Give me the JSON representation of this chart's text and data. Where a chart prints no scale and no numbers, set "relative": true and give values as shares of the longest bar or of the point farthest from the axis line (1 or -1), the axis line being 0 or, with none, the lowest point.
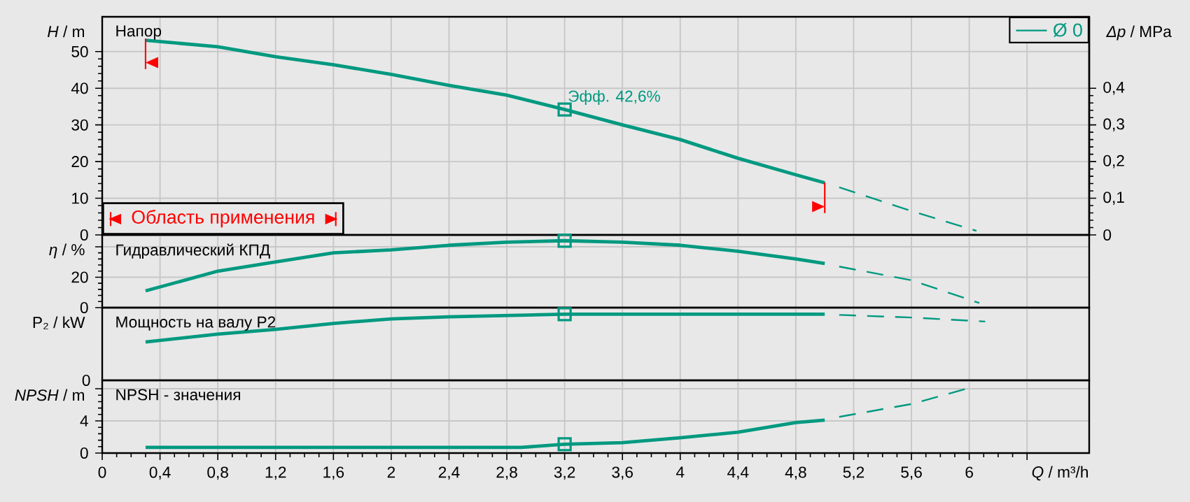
{
  "chart_data": [
    {
      "type": "line",
      "title": "Напор",
      "ylabel": "*H* / m",
      "y2label": "*Δp* / MPa",
      "xlim": [
        0,
        6.83
      ],
      "xticks": [
        0,
        0.4,
        0.8,
        1.2,
        1.6,
        2,
        2.4,
        2.8,
        3.2,
        3.6,
        4,
        4.4,
        4.8,
        5.2,
        5.6,
        6,
        6.4
      ],
      "ylim": [
        0,
        59.5
      ],
      "yticks": [
        0,
        10,
        20,
        30,
        40,
        50
      ],
      "y2lim": [
        0,
        0.595
      ],
      "y2ticks": [
        0,
        {
          "value": 0.1,
          "label": "0,1"
        },
        {
          "value": 0.2,
          "label": "0,2"
        },
        {
          "value": 0.3,
          "label": "0,3"
        },
        {
          "value": 0.4,
          "label": "0,4"
        }
      ],
      "grid": true,
      "legend": "top right",
      "tick_labels": "y",
      "series": [
        {
          "name": "Ø 0",
          "color": "#009980",
          "x": [
            0.3,
            0.8,
            1.2,
            1.6,
            2.0,
            2.4,
            2.8,
            3.2,
            3.6,
            4.0,
            4.4,
            4.8,
            5.0
          ],
          "values": [
            53.1,
            51.3,
            48.6,
            46.4,
            43.8,
            40.8,
            38.1,
            34.2,
            30.0,
            26.0,
            20.9,
            16.4,
            14.2
          ]
        },
        {
          "color": "#009980",
          "line_style": "dashed",
          "x": [
            5.1,
            5.6,
            6.05
          ],
          "values": [
            13.0,
            6.5,
            1.1
          ]
        },
        {
          "type": "scatter",
          "color": "#009980",
          "marker": "square",
          "x": [
            3.2
          ],
          "values": [
            34.2
          ]
        }
      ],
      "annotations": [
        {
          "text": "Эфф.  42,6%",
          "x": 3.2,
          "y": 34.2
        }
      ],
      "ref_lines": [
        {
          "axis": "x",
          "value": 0.3,
          "label": "Область применения",
          "color": "#ff0000"
        },
        {
          "axis": "x",
          "value": 5.0,
          "color": "#ff0000"
        }
      ]
    },
    {
      "type": "line",
      "title": "Гидравлический КПД",
      "ylabel": "*η* / %",
      "xlim": [
        0,
        6.83
      ],
      "xticks": [
        0,
        0.4,
        0.8,
        1.2,
        1.6,
        2,
        2.4,
        2.8,
        3.2,
        3.6,
        4,
        4.4,
        4.8,
        5.2,
        5.6,
        6,
        6.4
      ],
      "ylim": [
        0,
        47.8
      ],
      "yticks": [
        0,
        20,
        {
          "value": 40,
          "label": null
        }
      ],
      "grid": true,
      "tick_labels": "y",
      "series": [
        {
          "color": "#009980",
          "x": [
            0.3,
            0.8,
            1.2,
            1.6,
            2.0,
            2.4,
            2.8,
            3.2,
            3.6,
            4.0,
            4.4,
            4.8,
            5.0
          ],
          "values": [
            11,
            24,
            30,
            36,
            38,
            41,
            43,
            44,
            43,
            41,
            37,
            32,
            29
          ]
        },
        {
          "color": "#009980",
          "line_style": "dashed",
          "x": [
            5.1,
            5.6,
            6.07
          ],
          "values": [
            27,
            18,
            3
          ]
        },
        {
          "type": "scatter",
          "color": "#009980",
          "marker": "square",
          "x": [
            3.2
          ],
          "values": [
            44
          ]
        }
      ]
    },
    {
      "type": "line",
      "title": "Мощность на валу P2",
      "ylabel": "P₂ / kW",
      "relative": true,
      "xlim": [
        0,
        6.83
      ],
      "xticks": [
        0,
        0.4,
        0.8,
        1.2,
        1.6,
        2,
        2.4,
        2.8,
        3.2,
        3.6,
        4,
        4.4,
        4.8,
        5.2,
        5.6,
        6,
        6.4
      ],
      "grid": "x",
      "tick_labels": false,
      "annotations": [
        "0"
      ],
      "series": [
        {
          "color": "#009980",
          "x": [
            0.3,
            0.8,
            1.2,
            1.6,
            2.0,
            2.4,
            3.2,
            5.0
          ],
          "values": [
            0.58,
            0.7,
            0.77,
            0.86,
            0.93,
            0.96,
            1,
            1
          ]
        },
        {
          "color": "#009980",
          "line_style": "dashed",
          "x": [
            5.1,
            5.6,
            6.11
          ],
          "values": [
            0.99,
            0.95,
            0.89
          ]
        },
        {
          "type": "scatter",
          "color": "#009980",
          "marker": "square",
          "x": [
            3.2
          ],
          "values": [
            1
          ]
        }
      ]
    },
    {
      "type": "line",
      "title": "NPSH - значения",
      "ylabel": "*NPSH* / m",
      "xlabel": "*Q* / m³/h",
      "xlim": [
        0,
        6.83
      ],
      "xticks": [
        0,
        {
          "value": 0.4,
          "label": "0,4"
        },
        {
          "value": 0.8,
          "label": "0,8"
        },
        {
          "value": 1.2,
          "label": "1,2"
        },
        {
          "value": 1.6,
          "label": "1,6"
        },
        2,
        {
          "value": 2.4,
          "label": "2,4"
        },
        {
          "value": 2.8,
          "label": "2,8"
        },
        {
          "value": 3.2,
          "label": "3,2"
        },
        {
          "value": 3.6,
          "label": "3,6"
        },
        4,
        {
          "value": 4.4,
          "label": "4,4"
        },
        {
          "value": 4.8,
          "label": "4,8"
        },
        {
          "value": 5.2,
          "label": "5,2"
        },
        {
          "value": 5.6,
          "label": "5,6"
        },
        6,
        {
          "value": 6.4,
          "label": null
        }
      ],
      "ylim": [
        0,
        9.05
      ],
      "yticks": [
        0,
        4,
        {
          "value": 8,
          "label": null
        }
      ],
      "grid": true,
      "series": [
        {
          "color": "#009980",
          "x": [
            0.3,
            2.9,
            3.2,
            3.6,
            4.0,
            4.4,
            4.8,
            5.0
          ],
          "values": [
            0.7,
            0.7,
            1.1,
            1.3,
            1.9,
            2.6,
            3.8,
            4.1
          ]
        },
        {
          "color": "#009980",
          "line_style": "dashed",
          "x": [
            5.1,
            5.6,
            6.0
          ],
          "values": [
            4.5,
            6.1,
            8.1
          ]
        },
        {
          "type": "scatter",
          "color": "#009980",
          "marker": "square",
          "x": [
            3.2
          ],
          "values": [
            1.1
          ]
        }
      ]
    }
  ]
}
